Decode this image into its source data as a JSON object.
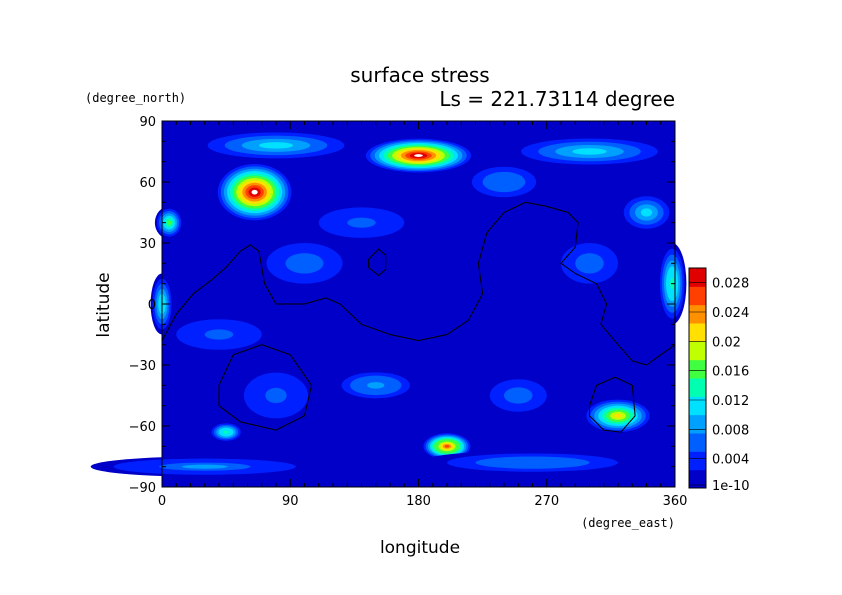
{
  "chart_data": {
    "type": "heatmap",
    "title": "surface stress",
    "subtitle": "Ls = 221.73114 degree",
    "xlabel": "longitude",
    "ylabel": "latitude",
    "x_units": "(degree_east)",
    "y_units": "(degree_north)",
    "xlim": [
      0,
      360
    ],
    "ylim": [
      -90,
      90
    ],
    "x_ticks": [
      "0",
      "90",
      "180",
      "270",
      "360"
    ],
    "y_ticks": [
      "90",
      "60",
      "30",
      "0",
      "−30",
      "−60",
      "−90"
    ],
    "x_tick_values": [
      0,
      90,
      180,
      270,
      360
    ],
    "y_tick_values": [
      90,
      60,
      30,
      0,
      -30,
      -60,
      -90
    ],
    "grid": false,
    "colorbar": {
      "labels": [
        "0.028",
        "0.024",
        "0.02",
        "0.016",
        "0.012",
        "0.008",
        "0.004",
        "1e-10"
      ],
      "values": [
        0.028,
        0.024,
        0.02,
        0.016,
        0.012,
        0.008,
        0.004,
        1e-10
      ],
      "range": [
        0,
        0.03
      ],
      "colors": [
        "#0000c8",
        "#0020ff",
        "#0060ff",
        "#00a0ff",
        "#00e0ff",
        "#00ffb0",
        "#40ff40",
        "#c0ff00",
        "#ffe000",
        "#ff9000",
        "#ff4000",
        "#e00000"
      ]
    },
    "field_blobs": [
      {
        "lon": 65,
        "lat": 55,
        "rlon": 28,
        "rlat": 15,
        "value": 0.03
      },
      {
        "lon": 180,
        "lat": 73,
        "rlon": 40,
        "rlat": 9,
        "value": 0.03
      },
      {
        "lon": 200,
        "lat": -70,
        "rlon": 18,
        "rlat": 7,
        "value": 0.026
      },
      {
        "lon": 320,
        "lat": -55,
        "rlon": 25,
        "rlat": 9,
        "value": 0.02
      },
      {
        "lon": 45,
        "lat": -63,
        "rlon": 12,
        "rlat": 5,
        "value": 0.014
      },
      {
        "lon": 5,
        "lat": 40,
        "rlon": 10,
        "rlat": 8,
        "value": 0.015
      },
      {
        "lon": 358,
        "lat": 10,
        "rlon": 10,
        "rlat": 20,
        "value": 0.014
      },
      {
        "lon": 0,
        "lat": 0,
        "rlon": 8,
        "rlat": 15,
        "value": 0.012
      },
      {
        "lon": 80,
        "lat": 78,
        "rlon": 60,
        "rlat": 8,
        "value": 0.01
      },
      {
        "lon": 300,
        "lat": 75,
        "rlon": 60,
        "rlat": 8,
        "value": 0.01
      },
      {
        "lon": 240,
        "lat": 60,
        "rlon": 30,
        "rlat": 10,
        "value": 0.007
      },
      {
        "lon": 340,
        "lat": 45,
        "rlon": 20,
        "rlat": 10,
        "value": 0.01
      },
      {
        "lon": 30,
        "lat": -80,
        "rlon": 80,
        "rlat": 5,
        "value": 0.008
      },
      {
        "lon": 260,
        "lat": -78,
        "rlon": 80,
        "rlat": 6,
        "value": 0.007
      },
      {
        "lon": 150,
        "lat": -40,
        "rlon": 30,
        "rlat": 8,
        "value": 0.009
      },
      {
        "lon": 80,
        "lat": -45,
        "rlon": 30,
        "rlat": 15,
        "value": 0.006
      },
      {
        "lon": 40,
        "lat": -15,
        "rlon": 40,
        "rlat": 10,
        "value": 0.006
      },
      {
        "lon": 250,
        "lat": -45,
        "rlon": 30,
        "rlat": 12,
        "value": 0.005
      },
      {
        "lon": 100,
        "lat": 20,
        "rlon": 40,
        "rlat": 15,
        "value": 0.005
      },
      {
        "lon": 300,
        "lat": 20,
        "rlon": 30,
        "rlat": 15,
        "value": 0.005
      },
      {
        "lon": 140,
        "lat": 40,
        "rlon": 40,
        "rlat": 10,
        "value": 0.006
      }
    ],
    "contour_lines": [
      [
        [
          0,
          -18
        ],
        [
          10,
          -5
        ],
        [
          22,
          5
        ],
        [
          35,
          12
        ],
        [
          45,
          18
        ],
        [
          55,
          26
        ],
        [
          62,
          29
        ],
        [
          68,
          26
        ],
        [
          72,
          10
        ],
        [
          80,
          0
        ],
        [
          100,
          0
        ],
        [
          115,
          3
        ],
        [
          125,
          0
        ],
        [
          140,
          -10
        ],
        [
          160,
          -15
        ],
        [
          180,
          -18
        ],
        [
          200,
          -15
        ],
        [
          215,
          -8
        ],
        [
          225,
          5
        ],
        [
          222,
          20
        ],
        [
          228,
          35
        ],
        [
          240,
          45
        ],
        [
          255,
          50
        ],
        [
          270,
          48
        ],
        [
          285,
          45
        ],
        [
          292,
          40
        ],
        [
          290,
          28
        ],
        [
          280,
          20
        ],
        [
          290,
          15
        ],
        [
          305,
          10
        ],
        [
          312,
          0
        ],
        [
          308,
          -10
        ],
        [
          320,
          -20
        ],
        [
          330,
          -28
        ],
        [
          340,
          -30
        ],
        [
          350,
          -25
        ],
        [
          360,
          -20
        ]
      ],
      [
        [
          145,
          22
        ],
        [
          152,
          27
        ],
        [
          157,
          24
        ],
        [
          157,
          17
        ],
        [
          152,
          14
        ],
        [
          145,
          18
        ],
        [
          145,
          22
        ]
      ],
      [
        [
          40,
          -40
        ],
        [
          50,
          -25
        ],
        [
          70,
          -20
        ],
        [
          90,
          -25
        ],
        [
          105,
          -40
        ],
        [
          100,
          -55
        ],
        [
          80,
          -62
        ],
        [
          55,
          -58
        ],
        [
          40,
          -50
        ],
        [
          40,
          -40
        ]
      ],
      [
        [
          300,
          -50
        ],
        [
          305,
          -40
        ],
        [
          318,
          -36
        ],
        [
          330,
          -40
        ],
        [
          332,
          -55
        ],
        [
          322,
          -63
        ],
        [
          310,
          -62
        ],
        [
          300,
          -55
        ],
        [
          300,
          -50
        ]
      ]
    ]
  }
}
